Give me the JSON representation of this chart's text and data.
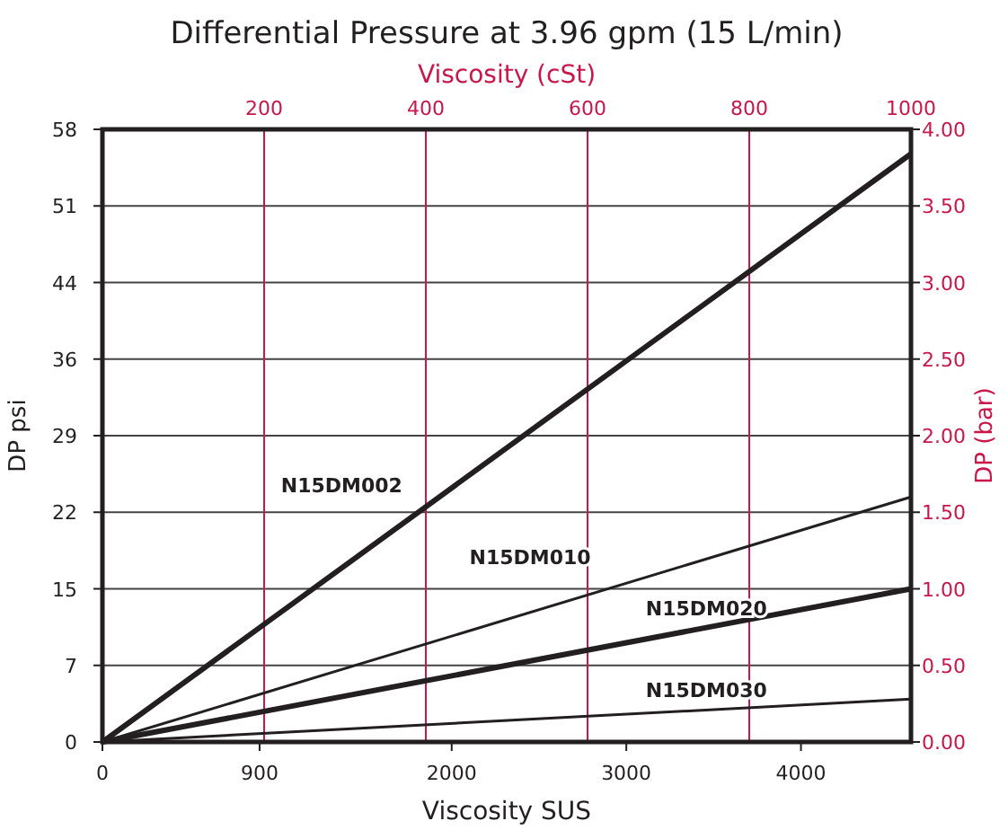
{
  "chart_data": {
    "type": "line",
    "title": "Differential Pressure at 3.96 gpm (15 L/min)",
    "xlabel": "Viscosity SUS",
    "x2label": "Viscosity (cSt)",
    "ylabel": "DP psi",
    "y2label": "DP (bar)",
    "xlim": [
      0,
      4630
    ],
    "xticks": [
      0,
      900,
      2000,
      3000,
      4000
    ],
    "x2lim": [
      0,
      1000
    ],
    "x2ticks": [
      200,
      400,
      600,
      800,
      1000
    ],
    "ylim": [
      0,
      58
    ],
    "yticks": [
      0,
      {
        "value": 7.25,
        "label": "7"
      },
      {
        "value": 14.5,
        "label": "15"
      },
      {
        "value": 21.75,
        "label": "22"
      },
      {
        "value": 29,
        "label": "29"
      },
      {
        "value": 36.25,
        "label": "36"
      },
      {
        "value": 43.5,
        "label": "44"
      },
      {
        "value": 50.75,
        "label": "51"
      },
      58
    ],
    "y2lim": [
      0,
      4
    ],
    "y2ticks": [
      {
        "value": 0,
        "label": "0.00"
      },
      {
        "value": 0.5,
        "label": "0.50"
      },
      {
        "value": 1,
        "label": "1.00"
      },
      {
        "value": 1.5,
        "label": "1.50"
      },
      {
        "value": 2,
        "label": "2.00"
      },
      {
        "value": 2.5,
        "label": "2.50"
      },
      {
        "value": 3,
        "label": "3.00"
      },
      {
        "value": 3.5,
        "label": "3.50"
      },
      {
        "value": 4,
        "label": "4.00"
      }
    ],
    "grid": true,
    "legend": false,
    "marker": "none",
    "line_style": "solid",
    "x": [
      0,
      4630
    ],
    "series": [
      {
        "name": "N15DM002",
        "color": "#231f20",
        "axis": "y2",
        "values": [
          0,
          3.84
        ]
      },
      {
        "name": "N15DM010",
        "color": "#231f20",
        "axis": "y2",
        "values": [
          0,
          1.6
        ]
      },
      {
        "name": "N15DM020",
        "color": "#231f20",
        "axis": "y2",
        "values": [
          0,
          1.0
        ]
      },
      {
        "name": "N15DM030",
        "color": "#231f20",
        "axis": "y2",
        "values": [
          0,
          0.28
        ]
      }
    ]
  }
}
